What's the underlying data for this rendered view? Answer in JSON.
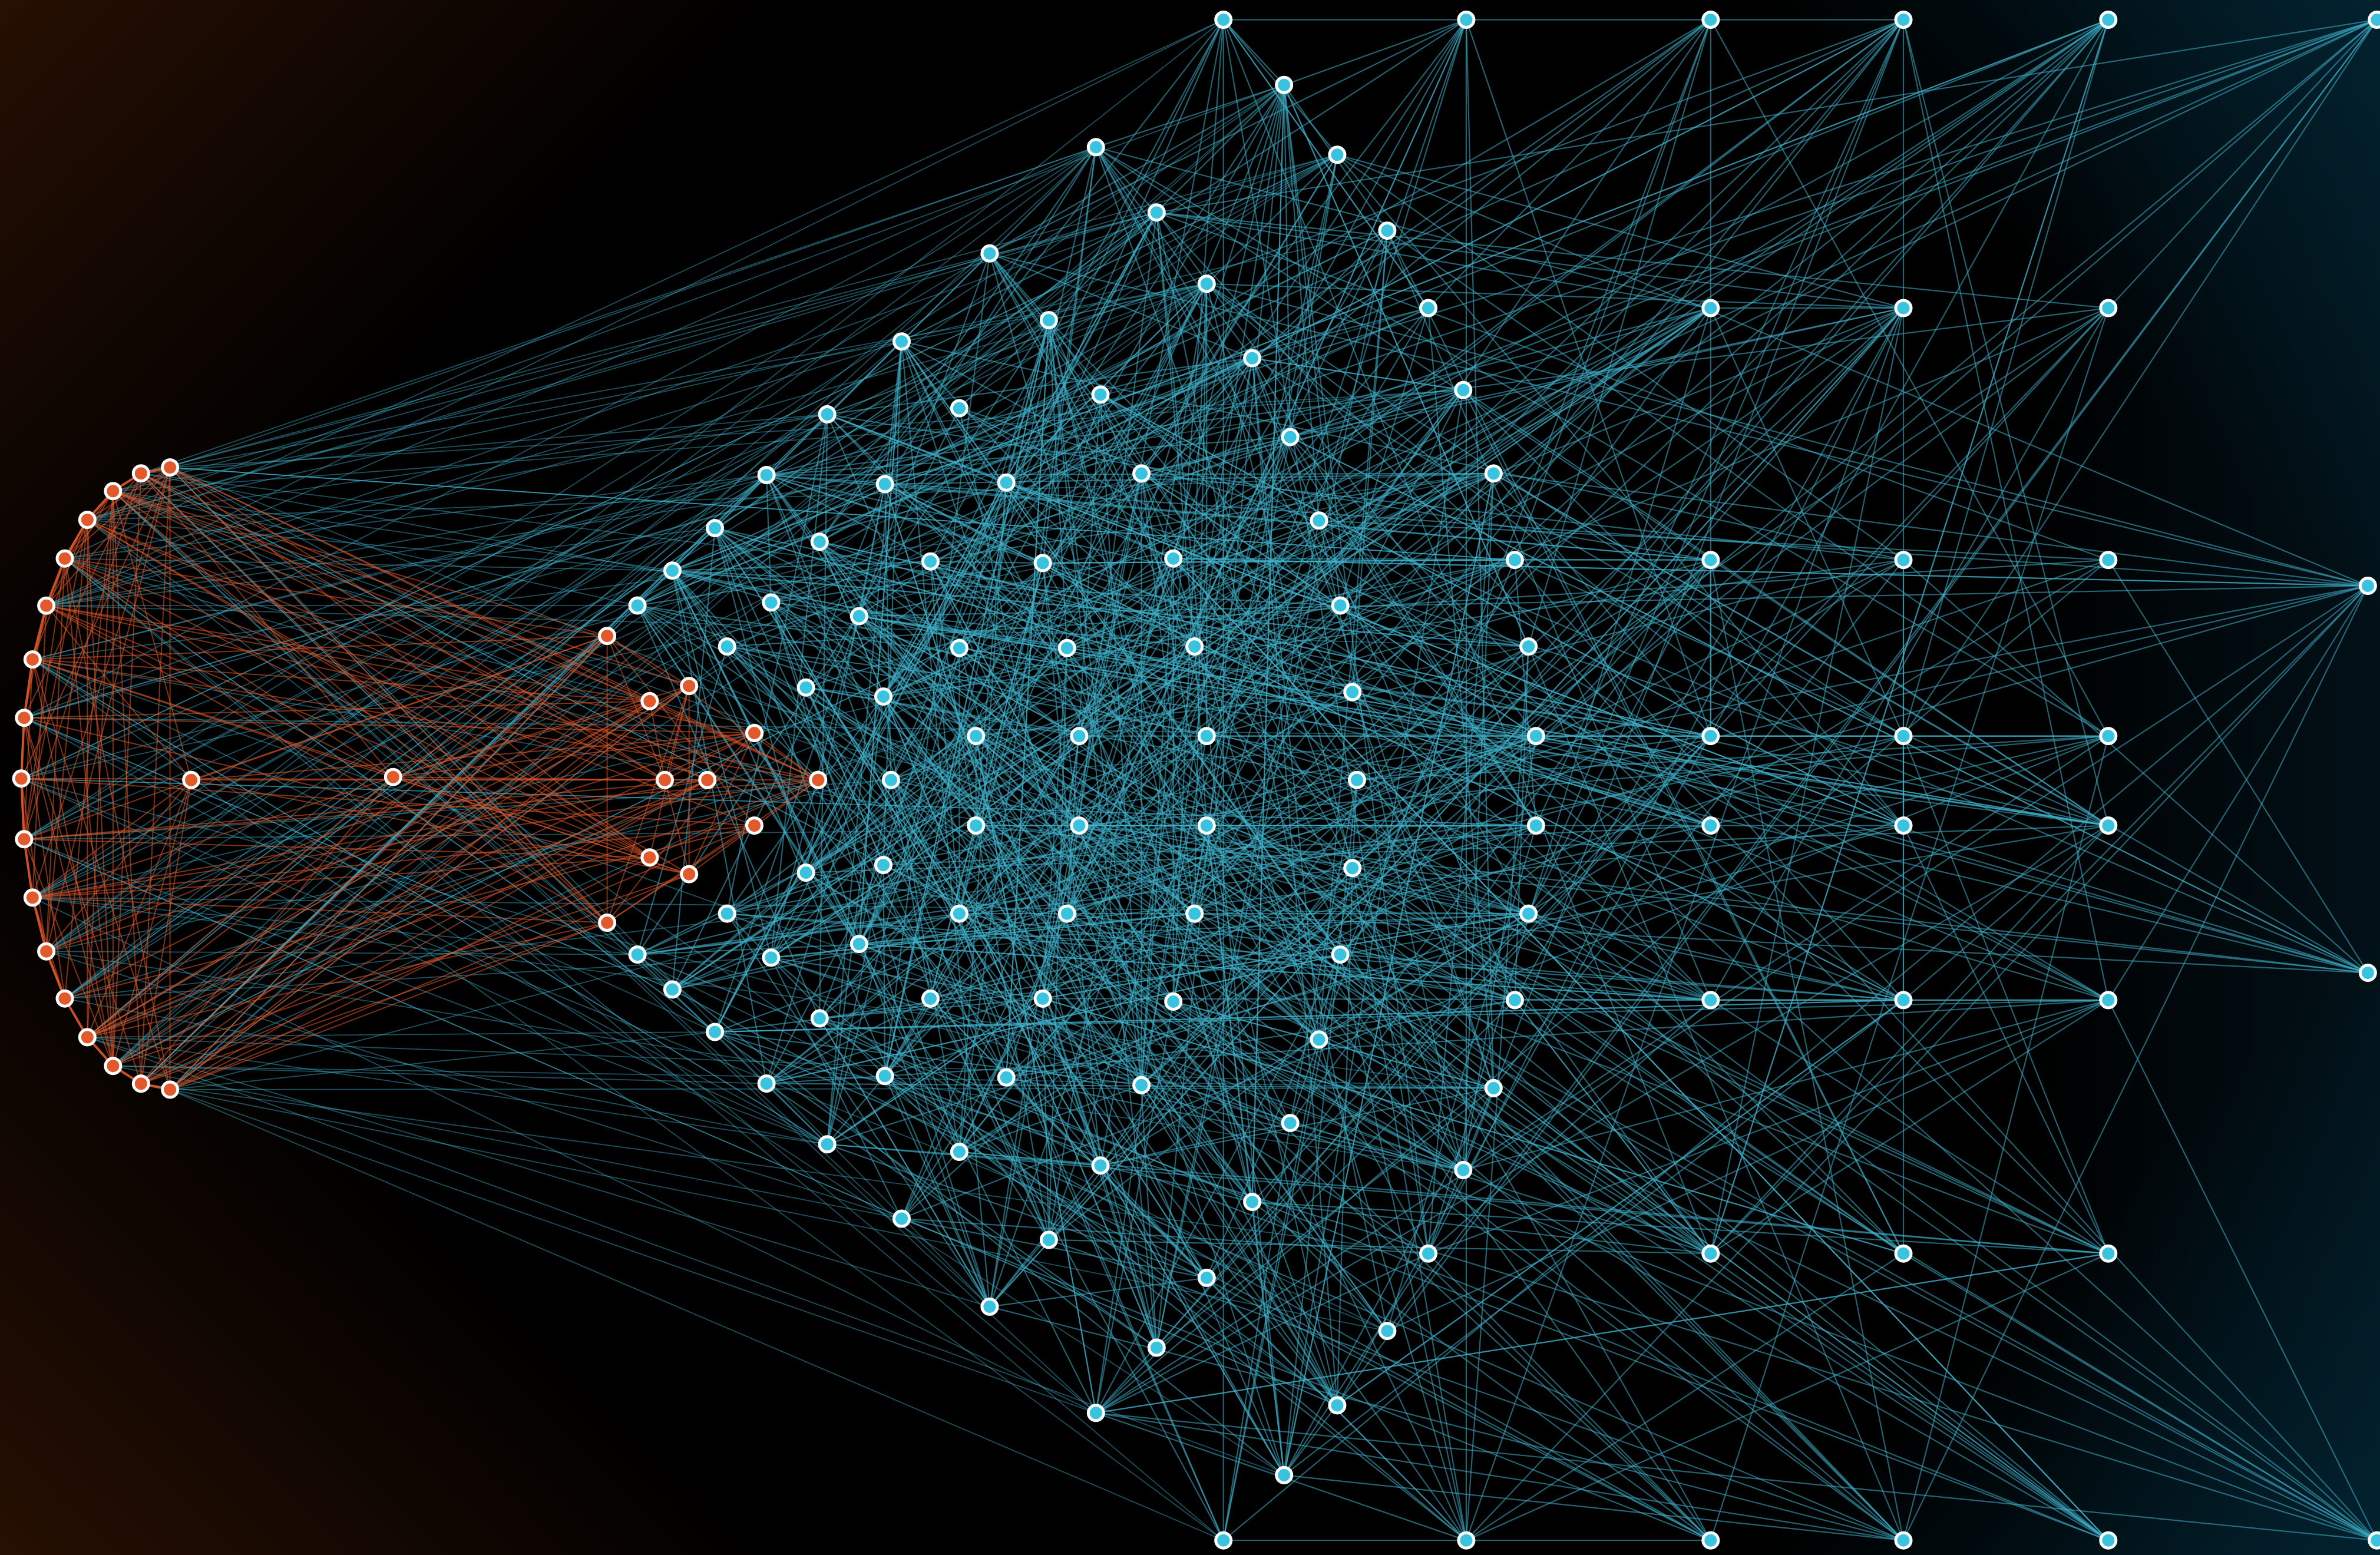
{
  "graph": {
    "colors": {
      "background": "#000000",
      "cluster_node": "#e2592b",
      "cluster_edge": "#e2592b",
      "network_node": "#39c3df",
      "network_edge": "#3fb2cc",
      "node_stroke": "#ffffff"
    },
    "groups": [
      {
        "id": "orange-cluster",
        "color": "#e2592b",
        "node_count": 30
      },
      {
        "id": "blue-network",
        "color": "#39c3df",
        "node_count": 160
      }
    ]
  }
}
